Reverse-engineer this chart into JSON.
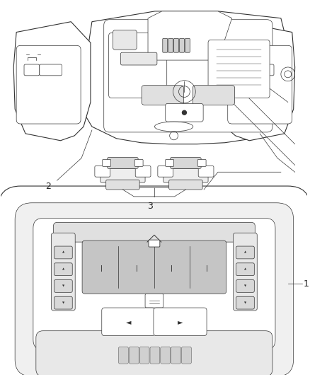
{
  "background_color": "#ffffff",
  "line_color": "#333333",
  "label_color": "#222222",
  "fig_width": 4.38,
  "fig_height": 5.33,
  "dpi": 100
}
